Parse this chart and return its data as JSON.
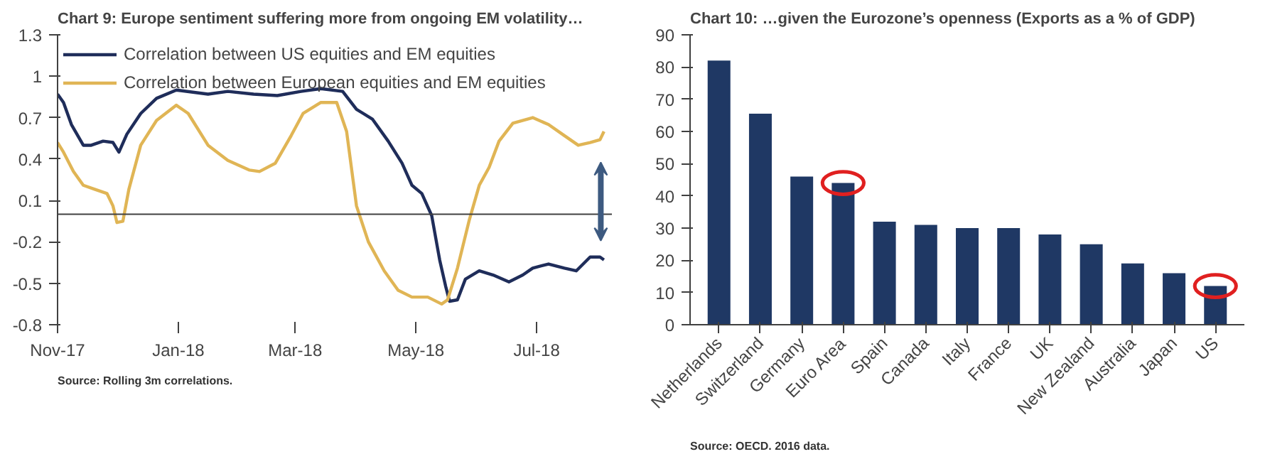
{
  "chart_data": [
    {
      "type": "line",
      "title": "Chart 9: Europe sentiment suffering more from ongoing EM volatility…",
      "annotations": [
        "Source: Rolling 3m correlations."
      ],
      "legend": "top left",
      "grid": false,
      "line_style": "solid",
      "xlim": [
        "2017-11-01",
        "2018-08-08"
      ],
      "xticks": [
        {
          "value": "2017-11-01",
          "label": "Nov-17"
        },
        {
          "value": "2018-01-01",
          "label": "Jan-18"
        },
        {
          "value": "2018-03-01",
          "label": "Mar-18"
        },
        {
          "value": "2018-05-01",
          "label": "May-18"
        },
        {
          "value": "2018-07-01",
          "label": "Jul-18"
        }
      ],
      "ylim": [
        -0.8,
        1.3
      ],
      "yticks": [
        -0.8,
        -0.5,
        -0.2,
        0.1,
        0.4,
        0.7,
        1,
        1.3
      ],
      "ref_lines": [
        {
          "axis": "y",
          "value": 0,
          "color": "#404040"
        }
      ],
      "series": [
        {
          "name": "Correlation between US equities and EM equities",
          "color": "#1f2d5a",
          "x": [
            "2017-11-01",
            "2017-11-04",
            "2017-11-08",
            "2017-11-14",
            "2017-11-18",
            "2017-11-24",
            "2017-11-29",
            "2017-12-02",
            "2017-12-06",
            "2017-12-13",
            "2017-12-21",
            "2017-12-31",
            "2018-01-16",
            "2018-01-26",
            "2018-02-08",
            "2018-02-20",
            "2018-03-04",
            "2018-03-14",
            "2018-03-25",
            "2018-04-01",
            "2018-04-09",
            "2018-04-17",
            "2018-04-24",
            "2018-04-29",
            "2018-05-04",
            "2018-05-09",
            "2018-05-13",
            "2018-05-16",
            "2018-05-18",
            "2018-05-22",
            "2018-05-26",
            "2018-06-02",
            "2018-06-09",
            "2018-06-17",
            "2018-06-24",
            "2018-06-29",
            "2018-07-07",
            "2018-07-15",
            "2018-07-21",
            "2018-07-28",
            "2018-08-02",
            "2018-08-04"
          ],
          "values": [
            0.87,
            0.81,
            0.65,
            0.5,
            0.5,
            0.53,
            0.52,
            0.45,
            0.58,
            0.73,
            0.84,
            0.9,
            0.87,
            0.89,
            0.87,
            0.86,
            0.89,
            0.91,
            0.89,
            0.76,
            0.69,
            0.53,
            0.37,
            0.21,
            0.15,
            -0.01,
            -0.33,
            -0.52,
            -0.63,
            -0.62,
            -0.47,
            -0.41,
            -0.44,
            -0.49,
            -0.44,
            -0.39,
            -0.36,
            -0.39,
            -0.41,
            -0.31,
            -0.31,
            -0.33
          ]
        },
        {
          "name": "Correlation between European equities and EM equities",
          "color": "#e0b555",
          "x": [
            "2017-11-01",
            "2017-11-04",
            "2017-11-09",
            "2017-11-14",
            "2017-11-20",
            "2017-11-26",
            "2017-11-29",
            "2017-12-01",
            "2017-12-04",
            "2017-12-07",
            "2017-12-13",
            "2017-12-21",
            "2017-12-31",
            "2018-01-06",
            "2018-01-16",
            "2018-01-26",
            "2018-02-06",
            "2018-02-11",
            "2018-02-19",
            "2018-02-27",
            "2018-03-05",
            "2018-03-14",
            "2018-03-22",
            "2018-03-27",
            "2018-04-01",
            "2018-04-07",
            "2018-04-15",
            "2018-04-22",
            "2018-04-29",
            "2018-05-07",
            "2018-05-14",
            "2018-05-17",
            "2018-05-22",
            "2018-05-28",
            "2018-06-02",
            "2018-06-07",
            "2018-06-12",
            "2018-06-19",
            "2018-06-29",
            "2018-07-07",
            "2018-07-15",
            "2018-07-22",
            "2018-07-28",
            "2018-08-02",
            "2018-08-04"
          ],
          "values": [
            0.52,
            0.45,
            0.31,
            0.21,
            0.18,
            0.15,
            0.06,
            -0.06,
            -0.05,
            0.18,
            0.5,
            0.68,
            0.79,
            0.73,
            0.5,
            0.39,
            0.32,
            0.31,
            0.37,
            0.57,
            0.73,
            0.81,
            0.81,
            0.6,
            0.06,
            -0.2,
            -0.41,
            -0.55,
            -0.6,
            -0.6,
            -0.65,
            -0.62,
            -0.39,
            -0.04,
            0.21,
            0.34,
            0.53,
            0.66,
            0.7,
            0.65,
            0.57,
            0.5,
            0.52,
            0.54,
            0.6
          ]
        }
      ]
    },
    {
      "type": "bar",
      "title": "Chart 10: …given the Eurozone’s openness (Exports as a % of GDP)",
      "annotations": [
        "Source: OECD. 2016 data."
      ],
      "grid": false,
      "color": "#1f3864",
      "categories": [
        "Netherlands",
        "Switzerland",
        "Germany",
        "Euro Area",
        "Spain",
        "Canada",
        "Italy",
        "France",
        "UK",
        "New Zealand",
        "Australia",
        "Japan",
        "US"
      ],
      "values": [
        82,
        65.5,
        46,
        44,
        32,
        31,
        30,
        30,
        28,
        25,
        19,
        16,
        12
      ],
      "ylim": [
        0,
        90
      ],
      "yticks": [
        0,
        10,
        20,
        30,
        40,
        50,
        60,
        70,
        80,
        90
      ]
    }
  ]
}
